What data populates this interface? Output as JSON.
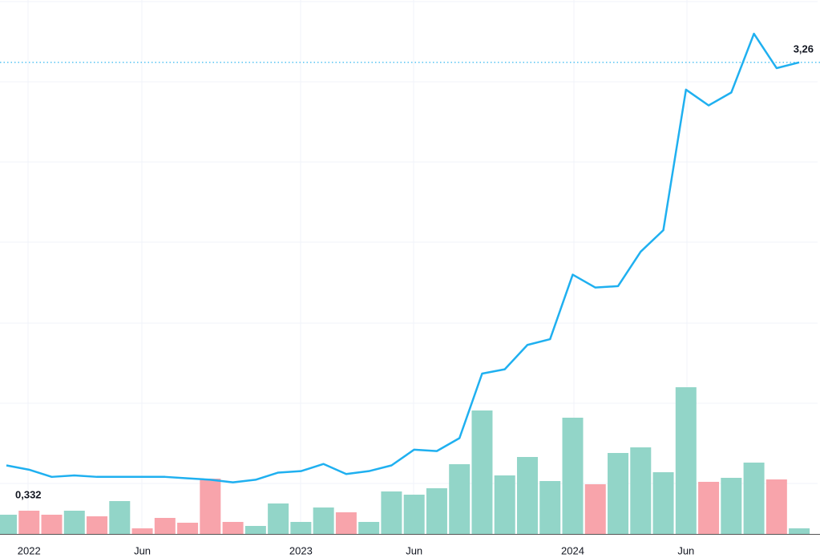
{
  "chart_data": {
    "type": "line",
    "categories": [
      null,
      "2022",
      null,
      null,
      null,
      null,
      "Jun",
      null,
      null,
      null,
      null,
      null,
      null,
      "2023",
      null,
      null,
      null,
      null,
      "Jun",
      null,
      null,
      null,
      null,
      null,
      null,
      "2024",
      null,
      null,
      null,
      null,
      "Jun",
      null,
      null,
      null,
      null,
      null
    ],
    "series": [
      {
        "color": "#1fb0f0",
        "values": [
          0.45,
          0.42,
          0.37,
          0.38,
          0.37,
          0.37,
          0.37,
          0.37,
          0.36,
          0.35,
          0.332,
          0.35,
          0.4,
          0.41,
          0.46,
          0.39,
          0.41,
          0.45,
          0.56,
          0.55,
          0.64,
          1.09,
          1.12,
          1.29,
          1.33,
          1.78,
          1.69,
          1.7,
          1.94,
          2.09,
          3.07,
          2.96,
          3.05,
          3.46,
          3.22,
          3.26
        ]
      }
    ],
    "ylim": [
      0,
      3.6
    ],
    "last_label": {
      "value": 3.26,
      "label": "3,26"
    },
    "min_label": {
      "value": 0.332,
      "label": "0,332"
    },
    "volume": {
      "ylim": [
        0,
        200
      ],
      "values": [
        24,
        29,
        24,
        29,
        22,
        41,
        7,
        20,
        14,
        69,
        15,
        10,
        38,
        15,
        33,
        27,
        15,
        53,
        49,
        57,
        87,
        154,
        73,
        96,
        66,
        145,
        62,
        101,
        108,
        77,
        183,
        65,
        70,
        89,
        68,
        7
      ],
      "colors": [
        "#92d5c8",
        "#f8a4ab",
        "#f8a4ab",
        "#92d5c8",
        "#f8a4ab",
        "#92d5c8",
        "#f8a4ab",
        "#f8a4ab",
        "#f8a4ab",
        "#f8a4ab",
        "#f8a4ab",
        "#92d5c8",
        "#92d5c8",
        "#92d5c8",
        "#92d5c8",
        "#f8a4ab",
        "#92d5c8",
        "#92d5c8",
        "#92d5c8",
        "#92d5c8",
        "#92d5c8",
        "#92d5c8",
        "#92d5c8",
        "#92d5c8",
        "#92d5c8",
        "#92d5c8",
        "#f8a4ab",
        "#92d5c8",
        "#92d5c8",
        "#92d5c8",
        "#92d5c8",
        "#f8a4ab",
        "#92d5c8",
        "#92d5c8",
        "#f8a4ab",
        "#92d5c8"
      ]
    }
  }
}
